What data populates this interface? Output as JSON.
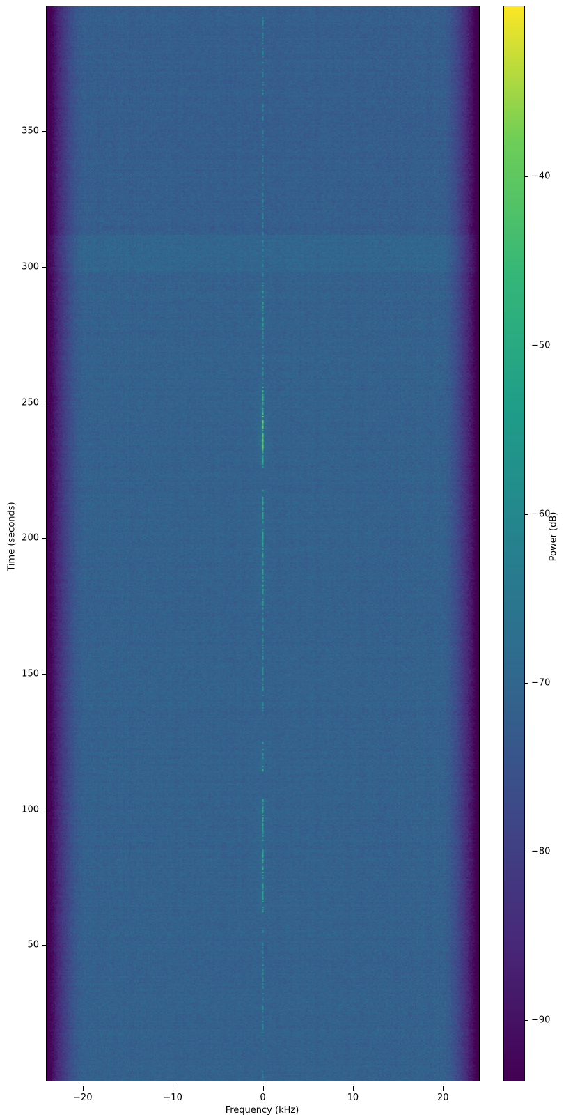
{
  "figure": {
    "background": "#ffffff",
    "text_color": "#000000"
  },
  "chart_data": {
    "type": "heatmap",
    "subtype": "spectrogram",
    "title": "",
    "xlabel": "Frequency (kHz)",
    "ylabel": "Time (seconds)",
    "colorbar_label": "Power (dB)",
    "xlim": [
      -24,
      24
    ],
    "ylim": [
      0,
      396
    ],
    "clim": [
      -93.6,
      -29.9
    ],
    "x_ticks": [
      -20,
      -10,
      0,
      10,
      20
    ],
    "y_ticks": [
      50,
      100,
      150,
      200,
      250,
      300,
      350
    ],
    "colorbar_ticks": [
      -40,
      -50,
      -60,
      -70,
      -80,
      -90
    ],
    "grid": false,
    "legend": "none",
    "colormap": {
      "name": "viridis",
      "stops": [
        {
          "t": 0.0,
          "color": "#440154"
        },
        {
          "t": 0.125,
          "color": "#482878"
        },
        {
          "t": 0.25,
          "color": "#3e4989"
        },
        {
          "t": 0.375,
          "color": "#31688e"
        },
        {
          "t": 0.5,
          "color": "#26828e"
        },
        {
          "t": 0.625,
          "color": "#1f9e89"
        },
        {
          "t": 0.75,
          "color": "#35b779"
        },
        {
          "t": 0.875,
          "color": "#6ece58"
        },
        {
          "t": 1.0,
          "color": "#fde725"
        }
      ]
    },
    "model": {
      "background_level_db": -71.5,
      "noise_std_db": 2.1,
      "row_jitter_db": 0.55,
      "col_jitter_db": 0.4,
      "band_edge": {
        "flat_half_width_khz": 19.8,
        "edge_khz": 24,
        "max_attenuation_db": 26,
        "exponent": 1.7
      },
      "horizontal_bands": [
        {
          "t0": 298,
          "t1": 312,
          "delta_db": 1.3
        },
        {
          "t0": 312,
          "t1": 396,
          "delta_db": -0.8
        }
      ],
      "center_line": {
        "frequency_khz": 0,
        "peak_level_db": -40,
        "segments": [
          {
            "t0": 0,
            "t1": 18,
            "strength": 0.15
          },
          {
            "t0": 18,
            "t1": 56,
            "strength": 0.3
          },
          {
            "t0": 62,
            "t1": 104,
            "strength": 0.55
          },
          {
            "t0": 114,
            "t1": 126,
            "strength": 0.5
          },
          {
            "t0": 136,
            "t1": 175,
            "strength": 0.35
          },
          {
            "t0": 175,
            "t1": 218,
            "strength": 0.55
          },
          {
            "t0": 226,
            "t1": 232,
            "strength": 0.6
          },
          {
            "t0": 232,
            "t1": 245,
            "strength": 0.95
          },
          {
            "t0": 245,
            "t1": 257,
            "strength": 0.65
          },
          {
            "t0": 257,
            "t1": 277,
            "strength": 0.35
          },
          {
            "t0": 277,
            "t1": 294,
            "strength": 0.5
          },
          {
            "t0": 294,
            "t1": 358,
            "strength": 0.25
          },
          {
            "t0": 358,
            "t1": 392,
            "strength": 0.3
          }
        ]
      }
    }
  }
}
